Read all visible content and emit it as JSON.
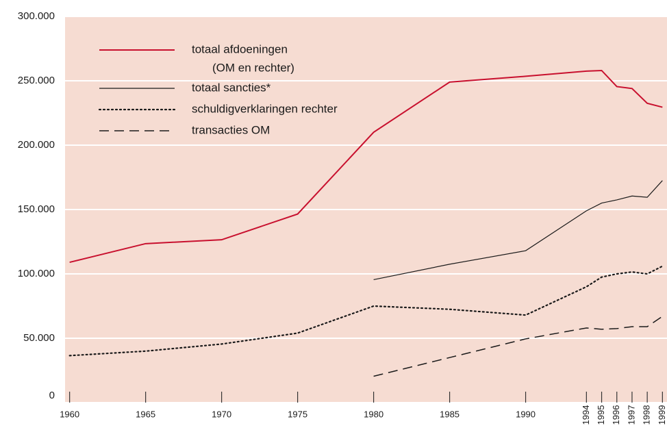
{
  "chart_data": {
    "type": "line",
    "x": [
      1960,
      1965,
      1970,
      1975,
      1980,
      1985,
      1990,
      1994,
      1995,
      1996,
      1997,
      1998,
      1999
    ],
    "xlim": [
      1959.7,
      1999.3
    ],
    "xticks": [
      1960,
      1965,
      1970,
      1975,
      1980,
      1985,
      1990,
      1994,
      1995,
      1996,
      1997,
      1998,
      1999
    ],
    "ylim": [
      0,
      300000
    ],
    "yticks": [
      0,
      {
        "value": 50000,
        "label": "50.000"
      },
      {
        "value": 100000,
        "label": "100.000"
      },
      {
        "value": 150000,
        "label": "150.000"
      },
      {
        "value": 200000,
        "label": "200.000"
      },
      {
        "value": 250000,
        "label": "250.000"
      },
      {
        "value": 300000,
        "label": "300.000"
      }
    ],
    "grid": true,
    "background": "#f6dcd2",
    "legend_note": "(OM en rechter)",
    "series": [
      {
        "name": "totaal afdoeningen",
        "color": "#c8102e",
        "dash": "solid",
        "width": 2,
        "values": [
          109000,
          123500,
          126500,
          146500,
          210000,
          249000,
          253500,
          257500,
          258000,
          245500,
          244000,
          232500,
          229500
        ]
      },
      {
        "name": "totaal sancties*",
        "color": "#1a1a1a",
        "dash": "solid",
        "width": 1.2,
        "values": [
          null,
          null,
          null,
          null,
          95500,
          107500,
          118000,
          149000,
          155000,
          157500,
          160500,
          159500,
          172500
        ]
      },
      {
        "name": "schuldigverklaringen rechter",
        "color": "#1a1a1a",
        "dash": "dotted",
        "width": 2.2,
        "values": [
          36500,
          40000,
          45500,
          54000,
          75000,
          72500,
          68000,
          90000,
          97500,
          100000,
          101500,
          100000,
          106000
        ]
      },
      {
        "name": "transacties OM",
        "color": "#1a1a1a",
        "dash": "dashed",
        "width": 1.5,
        "values": [
          null,
          null,
          null,
          null,
          20500,
          35000,
          49500,
          58000,
          57000,
          57500,
          59000,
          59000,
          67000
        ]
      }
    ]
  }
}
